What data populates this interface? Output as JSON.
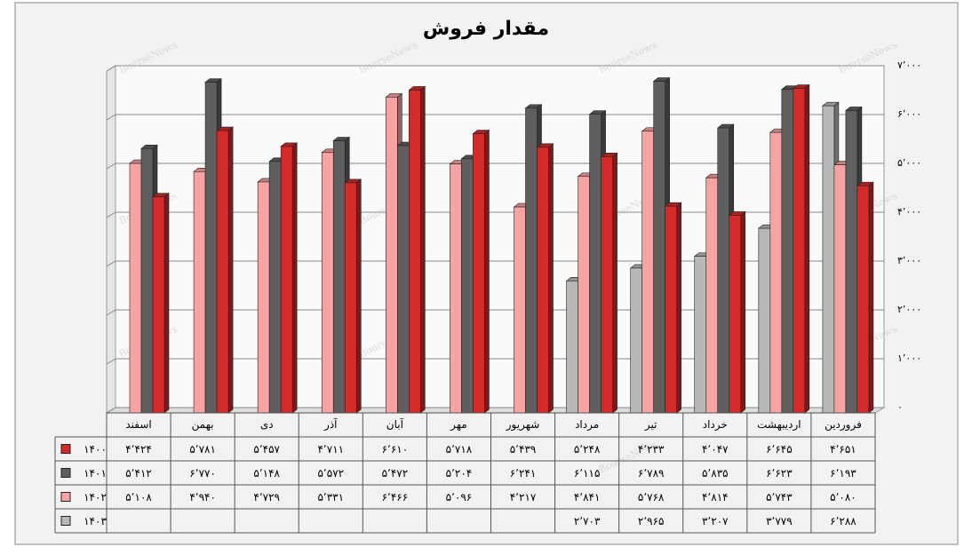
{
  "chart_data": {
    "type": "bar3d",
    "title": "مقدار فروش",
    "watermark": "BourseNews",
    "categories": [
      "فروردین",
      "اردیبهشت",
      "خرداد",
      "تیر",
      "مرداد",
      "شهریور",
      "مهر",
      "آبان",
      "آذر",
      "دی",
      "بهمن",
      "اسفند"
    ],
    "series": [
      {
        "name": "۱۴۰۰",
        "color": "#d42a2a",
        "values": [
          4651,
          6645,
          4047,
          4233,
          5248,
          5439,
          5718,
          6610,
          4711,
          5457,
          5781,
          4424
        ],
        "value_labels": [
          "۴٬۶۵۱",
          "۶٬۶۴۵",
          "۴٬۰۴۷",
          "۴٬۲۳۳",
          "۵٬۲۴۸",
          "۵٬۴۳۹",
          "۵٬۷۱۸",
          "۶٬۶۱۰",
          "۴٬۷۱۱",
          "۵٬۴۵۷",
          "۵٬۷۸۱",
          "۴٬۴۲۴"
        ]
      },
      {
        "name": "۱۴۰۱",
        "color": "#5f5f5f",
        "values": [
          6193,
          6623,
          5835,
          6789,
          6115,
          6241,
          5204,
          5472,
          5572,
          5148,
          6770,
          5412
        ],
        "value_labels": [
          "۶٬۱۹۳",
          "۶٬۶۲۳",
          "۵٬۸۳۵",
          "۶٬۷۸۹",
          "۶٬۱۱۵",
          "۶٬۲۴۱",
          "۵٬۲۰۴",
          "۵٬۴۷۲",
          "۵٬۵۷۲",
          "۵٬۱۴۸",
          "۶٬۷۷۰",
          "۵٬۴۱۲"
        ]
      },
      {
        "name": "۱۴۰۲",
        "color": "#f7a3a3",
        "values": [
          5080,
          5743,
          4814,
          5768,
          4841,
          4217,
          5096,
          6466,
          5331,
          4729,
          4940,
          5108
        ],
        "value_labels": [
          "۵٬۰۸۰",
          "۵٬۷۴۳",
          "۴٬۸۱۴",
          "۵٬۷۶۸",
          "۴٬۸۴۱",
          "۴٬۲۱۷",
          "۵٬۰۹۶",
          "۶٬۴۶۶",
          "۵٬۳۳۱",
          "۴٬۷۲۹",
          "۴٬۹۴۰",
          "۵٬۱۰۸"
        ]
      },
      {
        "name": "۱۴۰۳",
        "color": "#b8b8b8",
        "values": [
          6288,
          3779,
          3207,
          2965,
          2703,
          null,
          null,
          null,
          null,
          null,
          null,
          null
        ],
        "value_labels": [
          "۶٬۲۸۸",
          "۳٬۷۷۹",
          "۳٬۲۰۷",
          "۲٬۹۶۵",
          "۲٬۷۰۳",
          null,
          null,
          null,
          null,
          null,
          null,
          null
        ]
      }
    ],
    "ylim": [
      0,
      7000
    ],
    "yticks": [
      {
        "value": 0,
        "label": "۰"
      },
      {
        "value": 1000,
        "label": "۱٬۰۰۰"
      },
      {
        "value": 2000,
        "label": "۲٬۰۰۰"
      },
      {
        "value": 3000,
        "label": "۳٬۰۰۰"
      },
      {
        "value": 4000,
        "label": "۴٬۰۰۰"
      },
      {
        "value": 5000,
        "label": "۵٬۰۰۰"
      },
      {
        "value": 6000,
        "label": "۶٬۰۰۰"
      },
      {
        "value": 7000,
        "label": "۷٬۰۰۰"
      }
    ],
    "grid": true
  }
}
